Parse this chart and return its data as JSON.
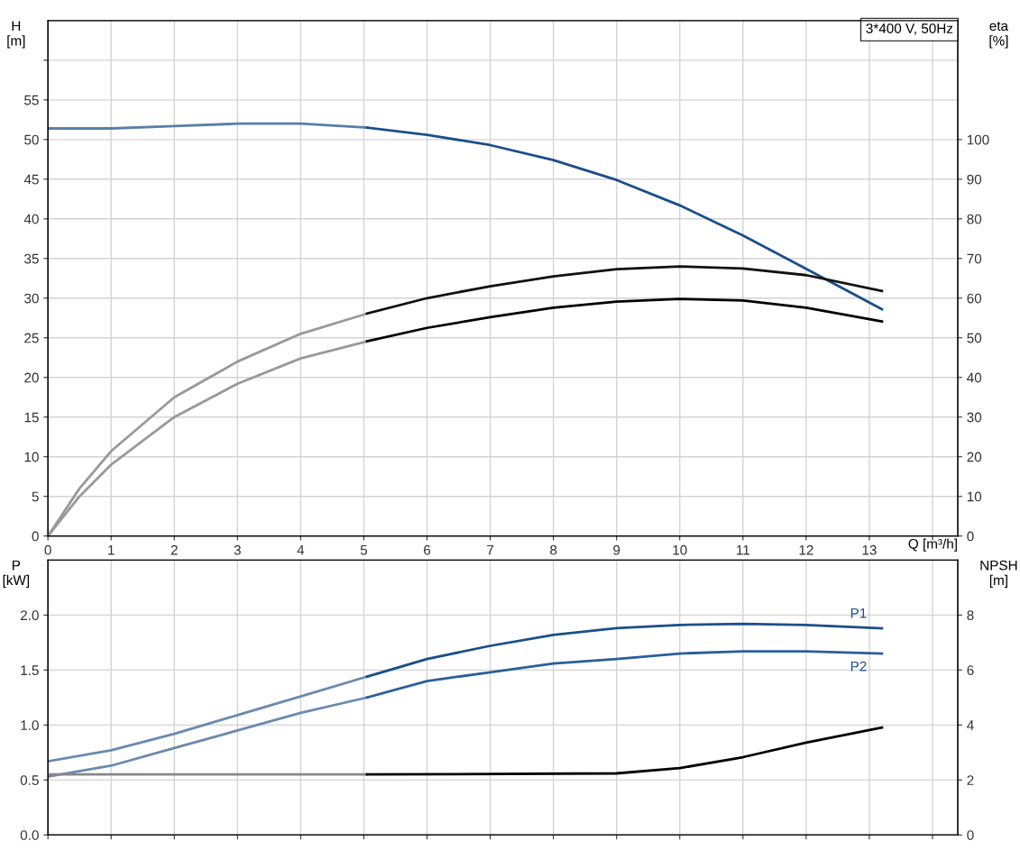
{
  "chart_data": [
    {
      "type": "line",
      "xlabel": "Q [m³/h]",
      "ylabel": "H\n[m]",
      "y2label": "eta\n[%]",
      "annotations": [
        "3*400 V, 50Hz"
      ],
      "xlim": [
        0,
        14.4
      ],
      "xticks": [
        0,
        1,
        2,
        3,
        4,
        5,
        6,
        7,
        8,
        9,
        10,
        11,
        12,
        13,
        {
          "value": 14,
          "label": null
        }
      ],
      "ylim": [
        0,
        65
      ],
      "yticks": [
        0,
        5,
        10,
        15,
        20,
        25,
        30,
        35,
        40,
        45,
        50,
        55,
        {
          "value": 60,
          "label": null
        }
      ],
      "y2lim": [
        0,
        130
      ],
      "y2ticks": [
        0,
        10,
        20,
        30,
        40,
        50,
        60,
        70,
        80,
        90,
        100
      ],
      "grid": true,
      "legend": false,
      "marker": "none",
      "line_style": "solid",
      "series": [
        {
          "color": "#5a7fa8",
          "x": [
            0,
            1,
            2,
            3,
            4,
            5.05
          ],
          "values": [
            51.4,
            51.4,
            51.7,
            52.0,
            52.0,
            51.5
          ]
        },
        {
          "color": "#1a4f8a",
          "x": [
            5.05,
            6,
            7,
            8,
            9,
            10,
            11,
            12,
            13.2
          ],
          "values": [
            51.5,
            50.6,
            49.3,
            47.4,
            44.9,
            41.7,
            37.9,
            33.7,
            28.6
          ]
        },
        {
          "color": "#999999",
          "axis": "y2",
          "x": [
            0,
            0.5,
            1,
            2,
            3,
            4,
            5.05
          ],
          "values": [
            0,
            12,
            21.4,
            35,
            44,
            51,
            56.1
          ]
        },
        {
          "color": "#111111",
          "axis": "y2",
          "x": [
            5.05,
            6,
            7,
            8,
            9,
            10,
            11,
            12,
            13.2
          ],
          "values": [
            56.1,
            60,
            63,
            65.5,
            67.3,
            68,
            67.5,
            65.8,
            61.8
          ]
        },
        {
          "color": "#999999",
          "axis": "y2",
          "x": [
            0,
            0.5,
            1,
            2,
            3,
            4,
            5.05
          ],
          "values": [
            0,
            10,
            18,
            30,
            38.4,
            44.8,
            49.1
          ]
        },
        {
          "color": "#000000",
          "axis": "y2",
          "x": [
            5.05,
            6,
            7,
            8,
            9,
            10,
            11,
            12,
            13.2
          ],
          "values": [
            49.1,
            52.5,
            55.2,
            57.6,
            59.1,
            59.8,
            59.4,
            57.6,
            54.1
          ]
        }
      ]
    },
    {
      "type": "line",
      "ylabel": "P\n[kW]",
      "y2label": "NPSH\n[m]",
      "annotations": [
        {
          "text": "P1",
          "x": 13.2,
          "y": 1.88
        },
        {
          "text": "P2",
          "x": 13.2,
          "y": 1.65
        }
      ],
      "xlim": [
        0,
        14.4
      ],
      "xticks": [
        0,
        1,
        2,
        3,
        4,
        5,
        6,
        7,
        8,
        9,
        10,
        11,
        12,
        13,
        14
      ],
      "ylim": [
        0,
        2.5
      ],
      "yticks": [
        {
          "value": 0,
          "label": "0.0"
        },
        0.5,
        {
          "value": 1,
          "label": "1.0"
        },
        1.5,
        {
          "value": 2,
          "label": "2.0"
        }
      ],
      "y2lim": [
        0,
        10
      ],
      "y2ticks": [
        0,
        2,
        4,
        6,
        8
      ],
      "tick_labels": "y",
      "grid": true,
      "legend": false,
      "marker": "none",
      "line_style": "solid",
      "series": [
        {
          "color": "#6a8ab0",
          "x": [
            0,
            1,
            2,
            3,
            4,
            5.05
          ],
          "values": [
            0.67,
            0.77,
            0.92,
            1.09,
            1.26,
            1.44
          ]
        },
        {
          "color": "#1a4f8a",
          "x": [
            5.05,
            6,
            7,
            8,
            9,
            10,
            11,
            12,
            13.2
          ],
          "values": [
            1.44,
            1.6,
            1.72,
            1.82,
            1.88,
            1.91,
            1.92,
            1.91,
            1.88
          ]
        },
        {
          "color": "#6a8ab0",
          "x": [
            0,
            1,
            2,
            3,
            4,
            5.05
          ],
          "values": [
            0.53,
            0.63,
            0.79,
            0.95,
            1.11,
            1.25
          ]
        },
        {
          "color": "#2a5f9a",
          "x": [
            5.05,
            6,
            7,
            8,
            9,
            10,
            11,
            12,
            13.2
          ],
          "values": [
            1.25,
            1.4,
            1.48,
            1.56,
            1.6,
            1.65,
            1.67,
            1.67,
            1.65
          ]
        },
        {
          "color": "#888888",
          "axis": "y2",
          "x": [
            0,
            5.05
          ],
          "values": [
            2.2,
            2.2
          ]
        },
        {
          "color": "#000000",
          "axis": "y2",
          "x": [
            5.05,
            9,
            10,
            11,
            12,
            13.2
          ],
          "values": [
            2.2,
            2.24,
            2.43,
            2.83,
            3.36,
            3.91
          ]
        }
      ]
    }
  ]
}
